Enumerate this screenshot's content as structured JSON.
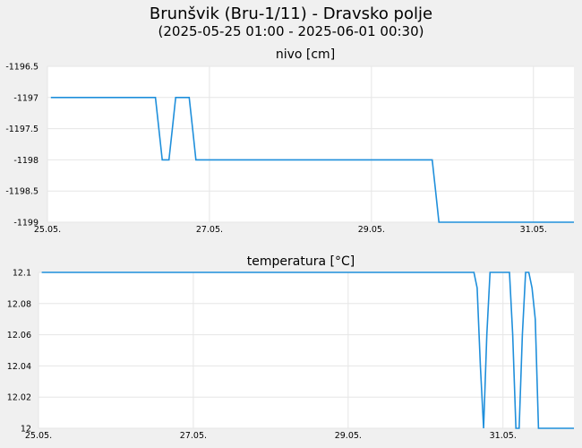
{
  "header": {
    "title": "Brunšvik (Bru-1/11) - Dravsko polje",
    "subtitle": "(2025-05-25 01:00 - 2025-06-01 00:30)"
  },
  "chart_data": [
    {
      "type": "line",
      "title": "nivo [cm]",
      "x_axis": {
        "type": "date",
        "min": "2025-05-25",
        "max": "2025-05-31 12:00",
        "ticks": [
          "25.05.",
          "27.05.",
          "29.05.",
          "31.05."
        ]
      },
      "y_ticks": [
        "-1196.5",
        "-1197",
        "-1197.5",
        "-1198",
        "-1198.5",
        "-1199"
      ],
      "ylim": [
        -1199,
        -1196.5
      ],
      "grid": true,
      "color": "#1f8fdb",
      "series": [
        {
          "x": [
            "2025-05-25 01:00",
            "2025-05-26 08:00",
            "2025-05-26 09:00",
            "2025-05-26 10:00",
            "2025-05-26 11:00",
            "2025-05-26 12:00",
            "2025-05-26 13:00",
            "2025-05-26 14:00",
            "2025-05-26 16:00",
            "2025-05-26 18:00",
            "2025-05-26 19:00",
            "2025-05-26 20:00",
            "2025-05-26 21:00",
            "2025-05-26 22:00",
            "2025-05-26 23:00",
            "2025-05-27 00:00",
            "2025-05-29 18:00",
            "2025-05-29 19:00",
            "2025-05-29 20:00",
            "2025-05-29 21:00",
            "2025-05-29 22:00",
            "2025-06-01 00:30"
          ],
          "values": [
            -1197,
            -1197,
            -1197.5,
            -1198,
            -1198,
            -1198,
            -1197.5,
            -1197,
            -1197,
            -1197,
            -1197.5,
            -1198,
            -1198,
            -1198,
            -1198,
            -1198,
            -1198,
            -1198.5,
            -1199,
            -1199,
            -1199,
            -1199
          ]
        }
      ]
    },
    {
      "type": "line",
      "title": "temperatura [°C]",
      "x_axis": {
        "type": "date",
        "min": "2025-05-25",
        "max": "2025-05-31 22:00",
        "ticks": [
          "25.05.",
          "27.05.",
          "29.05.",
          "31.05."
        ]
      },
      "y_ticks": [
        "12.1",
        "12.08",
        "12.06",
        "12.04",
        "12.02",
        "12"
      ],
      "ylim": [
        12,
        12.1
      ],
      "grid": true,
      "color": "#1f8fdb",
      "series": [
        {
          "x": [
            "2025-05-25 01:00",
            "2025-05-30 15:00",
            "2025-05-30 16:00",
            "2025-05-30 17:00",
            "2025-05-30 18:00",
            "2025-05-30 19:00",
            "2025-05-30 20:00",
            "2025-05-30 21:00",
            "2025-05-30 22:00",
            "2025-05-31 00:00",
            "2025-05-31 02:00",
            "2025-05-31 03:00",
            "2025-05-31 04:00",
            "2025-05-31 05:00",
            "2025-05-31 06:00",
            "2025-05-31 07:00",
            "2025-05-31 08:00",
            "2025-05-31 09:00",
            "2025-05-31 10:00",
            "2025-05-31 11:00",
            "2025-05-31 12:00",
            "2025-05-31 13:00",
            "2025-06-01 00:30"
          ],
          "values": [
            12.1,
            12.1,
            12.09,
            12.04,
            12.0,
            12.06,
            12.1,
            12.1,
            12.1,
            12.1,
            12.1,
            12.06,
            12.0,
            12.0,
            12.06,
            12.1,
            12.1,
            12.09,
            12.07,
            12.0,
            12.0,
            12.0,
            12.0
          ]
        }
      ]
    }
  ]
}
